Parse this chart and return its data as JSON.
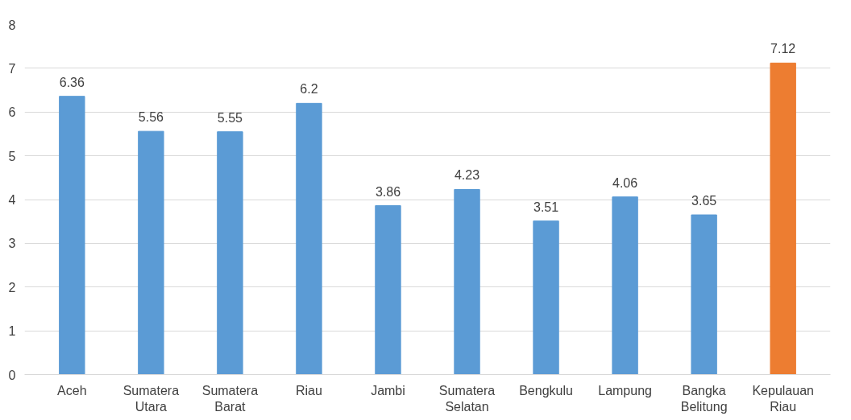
{
  "chart_data": {
    "type": "bar",
    "categories": [
      "Aceh",
      "Sumatera Utara",
      "Sumatera Barat",
      "Riau",
      "Jambi",
      "Sumatera Selatan",
      "Bengkulu",
      "Lampung",
      "Bangka Belitung",
      "Kepulauan Riau"
    ],
    "values": [
      6.36,
      5.56,
      5.55,
      6.2,
      3.86,
      4.23,
      3.51,
      4.06,
      3.65,
      7.12
    ],
    "colors": [
      "#5b9bd5",
      "#5b9bd5",
      "#5b9bd5",
      "#5b9bd5",
      "#5b9bd5",
      "#5b9bd5",
      "#5b9bd5",
      "#5b9bd5",
      "#5b9bd5",
      "#ed7d31"
    ],
    "ylim": [
      0,
      8
    ],
    "yticks": [
      0,
      1,
      2,
      3,
      4,
      5,
      6,
      7,
      8
    ],
    "grid": "y",
    "data_labels": true
  }
}
